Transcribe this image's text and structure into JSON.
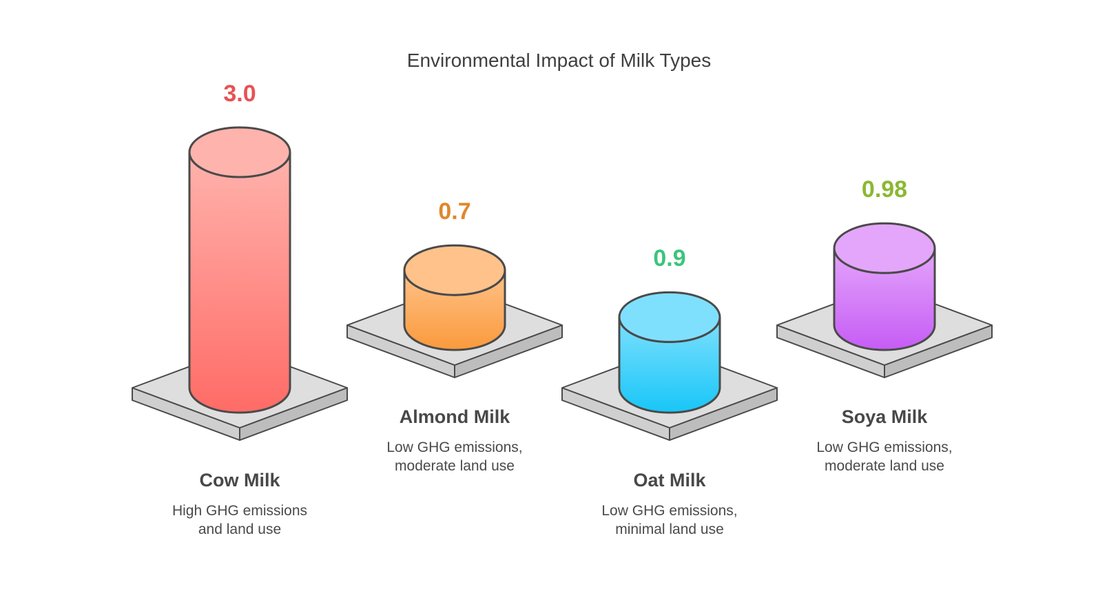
{
  "title": "Environmental Impact of Milk Types",
  "chart_data": {
    "type": "bar",
    "style": "3d-cylinders-on-platforms",
    "title": "Environmental Impact of Milk Types",
    "categories": [
      "Cow Milk",
      "Almond Milk",
      "Oat Milk",
      "Soya Milk"
    ],
    "values": [
      3.0,
      0.7,
      0.9,
      0.98
    ],
    "value_labels": [
      "3.0",
      "0.7",
      "0.9",
      "0.98"
    ],
    "descriptions": [
      [
        "High GHG emissions",
        "and land use"
      ],
      [
        "Low GHG emissions,",
        "moderate land use"
      ],
      [
        "Low GHG emissions,",
        "minimal land use"
      ],
      [
        "Low GHG emissions,",
        "moderate land use"
      ]
    ],
    "colors": [
      {
        "label": "#e65353",
        "top": "#ffb3ad",
        "bottom": "#ff6b66"
      },
      {
        "label": "#e0872e",
        "top": "#ffc28a",
        "bottom": "#fa9a3c"
      },
      {
        "label": "#3cc47c",
        "top": "#7fe0fd",
        "bottom": "#18c6f8"
      },
      {
        "label": "#8bb832",
        "top": "#e4a6fb",
        "bottom": "#c65cf5"
      }
    ]
  }
}
